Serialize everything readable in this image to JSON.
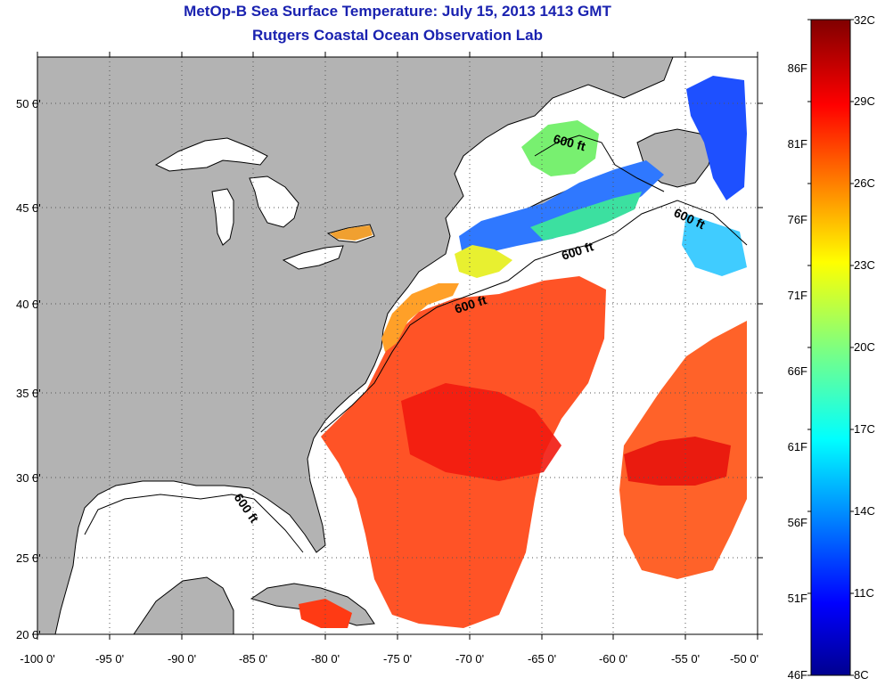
{
  "title": "MetOp-B Sea Surface Temperature:  July 15, 2013 1413 GMT",
  "subtitle": "Rutgers Coastal Ocean Observation Lab",
  "map": {
    "longitude_ticks": [
      "-100 0'",
      "-95 0'",
      "-90 0'",
      "-85 0'",
      "-80 0'",
      "-75 0'",
      "-70 0'",
      "-65 0'",
      "-60 0'",
      "-55 0'",
      "-50 0'"
    ],
    "latitude_ticks": [
      "50 0'",
      "45 0'",
      "40 0'",
      "35 0'",
      "30 0'",
      "25 0'",
      "20 0'"
    ],
    "contour_labels": [
      "600 ft",
      "600 ft",
      "600 ft",
      "600 ft",
      "600 ft"
    ],
    "grid": "dotted",
    "colors": {
      "land": "#b3b3b3",
      "no_data": "#ffffff",
      "coastline": "#000000"
    }
  },
  "colorbar": {
    "celsius_labels": [
      "32C",
      "29C",
      "26C",
      "23C",
      "20C",
      "17C",
      "14C",
      "11C",
      "8C"
    ],
    "fahrenheit_labels": [
      "86F",
      "81F",
      "76F",
      "71F",
      "66F",
      "61F",
      "56F",
      "51F",
      "46F"
    ],
    "colormap": "jet"
  }
}
